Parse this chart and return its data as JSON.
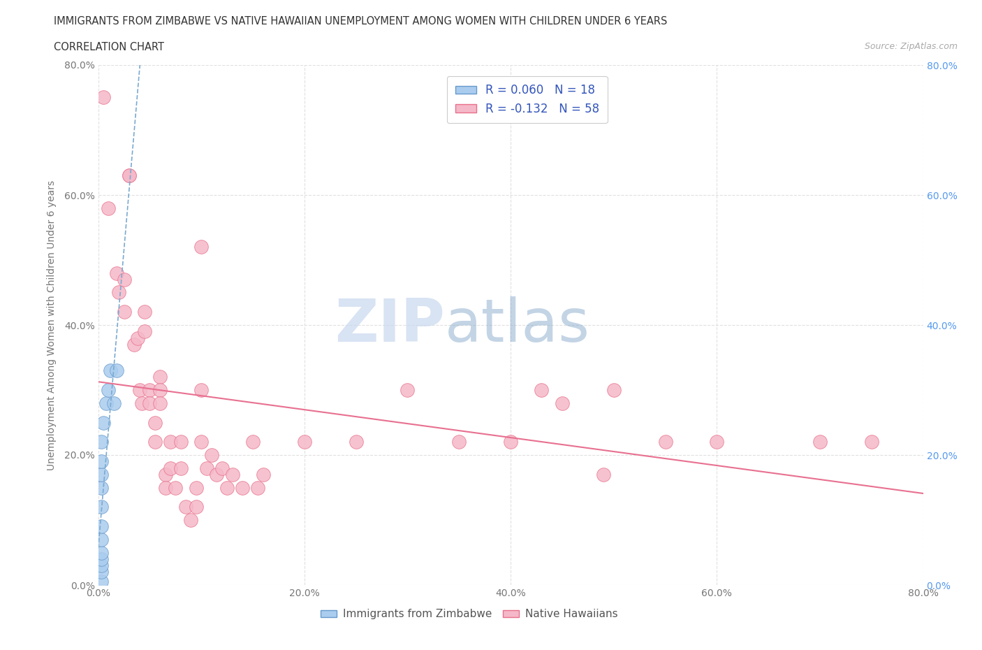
{
  "title": "IMMIGRANTS FROM ZIMBABWE VS NATIVE HAWAIIAN UNEMPLOYMENT AMONG WOMEN WITH CHILDREN UNDER 6 YEARS",
  "subtitle": "CORRELATION CHART",
  "source": "Source: ZipAtlas.com",
  "ylabel": "Unemployment Among Women with Children Under 6 years",
  "xlim": [
    0.0,
    0.8
  ],
  "ylim": [
    0.0,
    0.8
  ],
  "xticks": [
    0.0,
    0.2,
    0.4,
    0.6,
    0.8
  ],
  "yticks": [
    0.0,
    0.2,
    0.4,
    0.6,
    0.8
  ],
  "xticklabels": [
    "0.0%",
    "20.0%",
    "40.0%",
    "60.0%",
    "80.0%"
  ],
  "yticklabels": [
    "0.0%",
    "20.0%",
    "40.0%",
    "60.0%",
    "80.0%"
  ],
  "watermark_zip": "ZIP",
  "watermark_atlas": "atlas",
  "legend_r1": "R = 0.060",
  "legend_n1": "N = 18",
  "legend_r2": "R = -0.132",
  "legend_n2": "N = 58",
  "color_zimbabwe": "#aaccee",
  "color_hawaiian": "#f5b8c8",
  "edge_zimbabwe": "#6699cc",
  "edge_hawaiian": "#e8708a",
  "trendline_color_zimbabwe": "#7aaad0",
  "trendline_color_hawaiian": "#e87090",
  "scatter_zimbabwe": [
    [
      0.003,
      0.005
    ],
    [
      0.003,
      0.02
    ],
    [
      0.003,
      0.03
    ],
    [
      0.003,
      0.04
    ],
    [
      0.003,
      0.05
    ],
    [
      0.003,
      0.07
    ],
    [
      0.003,
      0.09
    ],
    [
      0.003,
      0.12
    ],
    [
      0.003,
      0.15
    ],
    [
      0.003,
      0.17
    ],
    [
      0.003,
      0.19
    ],
    [
      0.003,
      0.22
    ],
    [
      0.005,
      0.25
    ],
    [
      0.008,
      0.28
    ],
    [
      0.01,
      0.3
    ],
    [
      0.012,
      0.33
    ],
    [
      0.015,
      0.28
    ],
    [
      0.018,
      0.33
    ]
  ],
  "scatter_hawaiian": [
    [
      0.005,
      0.75
    ],
    [
      0.01,
      0.58
    ],
    [
      0.018,
      0.48
    ],
    [
      0.02,
      0.45
    ],
    [
      0.025,
      0.47
    ],
    [
      0.025,
      0.42
    ],
    [
      0.03,
      0.63
    ],
    [
      0.03,
      0.63
    ],
    [
      0.035,
      0.37
    ],
    [
      0.038,
      0.38
    ],
    [
      0.04,
      0.3
    ],
    [
      0.042,
      0.28
    ],
    [
      0.045,
      0.42
    ],
    [
      0.045,
      0.39
    ],
    [
      0.05,
      0.3
    ],
    [
      0.05,
      0.28
    ],
    [
      0.055,
      0.25
    ],
    [
      0.055,
      0.22
    ],
    [
      0.06,
      0.32
    ],
    [
      0.06,
      0.3
    ],
    [
      0.06,
      0.28
    ],
    [
      0.065,
      0.17
    ],
    [
      0.065,
      0.15
    ],
    [
      0.07,
      0.22
    ],
    [
      0.07,
      0.18
    ],
    [
      0.075,
      0.15
    ],
    [
      0.08,
      0.22
    ],
    [
      0.08,
      0.18
    ],
    [
      0.085,
      0.12
    ],
    [
      0.09,
      0.1
    ],
    [
      0.095,
      0.15
    ],
    [
      0.095,
      0.12
    ],
    [
      0.1,
      0.52
    ],
    [
      0.1,
      0.3
    ],
    [
      0.1,
      0.22
    ],
    [
      0.105,
      0.18
    ],
    [
      0.11,
      0.2
    ],
    [
      0.115,
      0.17
    ],
    [
      0.12,
      0.18
    ],
    [
      0.125,
      0.15
    ],
    [
      0.13,
      0.17
    ],
    [
      0.14,
      0.15
    ],
    [
      0.15,
      0.22
    ],
    [
      0.155,
      0.15
    ],
    [
      0.16,
      0.17
    ],
    [
      0.2,
      0.22
    ],
    [
      0.25,
      0.22
    ],
    [
      0.3,
      0.3
    ],
    [
      0.35,
      0.22
    ],
    [
      0.4,
      0.22
    ],
    [
      0.43,
      0.3
    ],
    [
      0.45,
      0.28
    ],
    [
      0.49,
      0.17
    ],
    [
      0.5,
      0.3
    ],
    [
      0.55,
      0.22
    ],
    [
      0.6,
      0.22
    ],
    [
      0.7,
      0.22
    ],
    [
      0.75,
      0.22
    ]
  ],
  "background_color": "#ffffff",
  "grid_color": "#e0e0e0"
}
